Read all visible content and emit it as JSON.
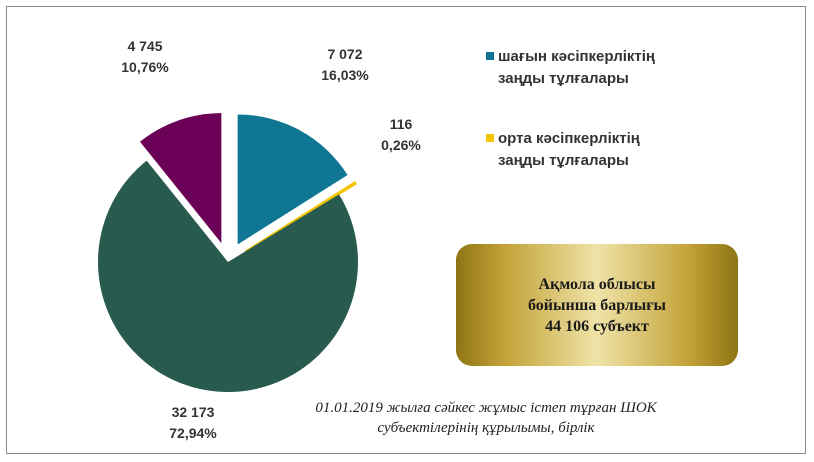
{
  "chart_data": {
    "type": "pie",
    "title": "",
    "slices": [
      {
        "name": "шағын кәсіпкерліктің заңды тұлғалары",
        "count_label": "7 072",
        "value": 16.03,
        "percent_label": "16,03%",
        "color": "#0f7693",
        "exploded": true
      },
      {
        "name": "орта кәсіпкерліктің заңды тұлғалары",
        "count_label": "116",
        "value": 0.26,
        "percent_label": "0,26%",
        "color": "#f5c400",
        "exploded": true
      },
      {
        "name": "",
        "count_label": "32 173",
        "value": 72.94,
        "percent_label": "72,94%",
        "color": "#295a4e",
        "exploded": false
      },
      {
        "name": "",
        "count_label": "4 745",
        "value": 10.76,
        "percent_label": "10,76%",
        "color": "#6b0057",
        "exploded": true
      }
    ],
    "legend_position": "right"
  },
  "legend": [
    {
      "line1": "шағын кәсіпкерліктің",
      "line2": "заңды тұлғалары",
      "color": "#0f7693"
    },
    {
      "line1": "орта кәсіпкерліктің",
      "line2": "заңды тұлғалары",
      "color": "#f5c400"
    }
  ],
  "total_box": {
    "line1": "Ақмола облысы",
    "line2": "бойынша барлығы",
    "line3": "44 106 субъект"
  },
  "caption": {
    "line1": "01.01.2019 жылға сәйкес жұмыс істеп тұрған ШОК",
    "line2": "субъектілерінің құрылымы, бірлік"
  }
}
